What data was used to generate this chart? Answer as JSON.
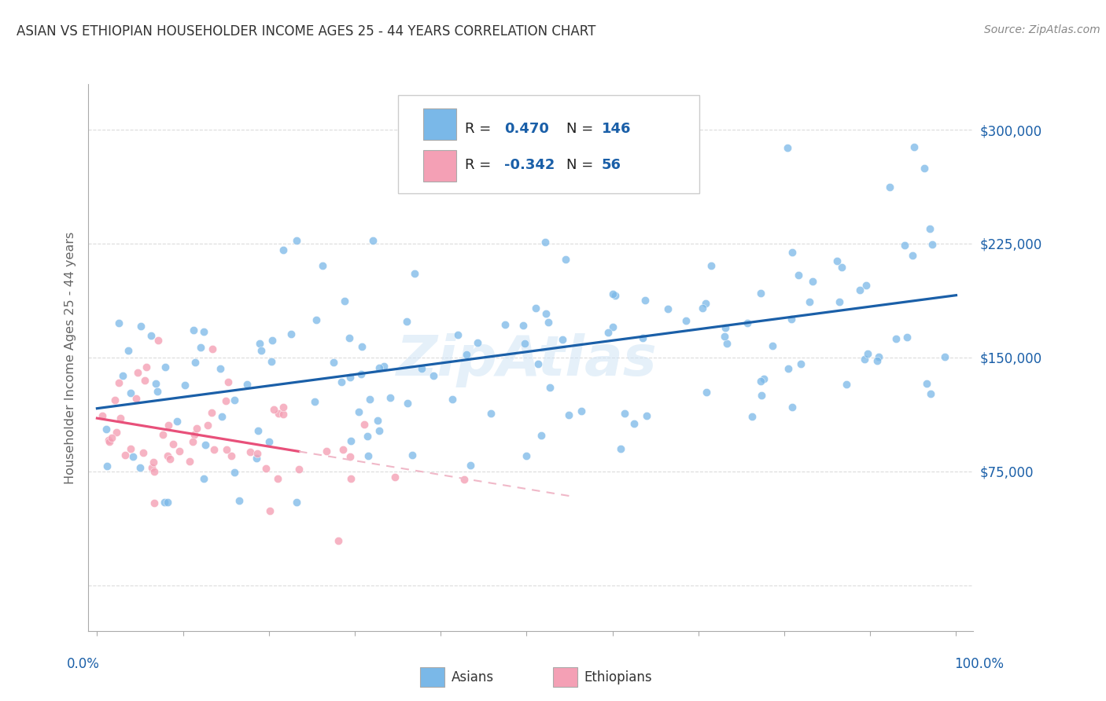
{
  "title": "ASIAN VS ETHIOPIAN HOUSEHOLDER INCOME AGES 25 - 44 YEARS CORRELATION CHART",
  "source": "Source: ZipAtlas.com",
  "ylabel": "Householder Income Ages 25 - 44 years",
  "asian_R": 0.47,
  "asian_N": 146,
  "ethiopian_R": -0.342,
  "ethiopian_N": 56,
  "asian_color": "#7ab8e8",
  "asian_line_color": "#1a5fa8",
  "ethiopian_color": "#f4a0b5",
  "ethiopian_line_color": "#e8507a",
  "ethiopian_dash_color": "#f0b8c8",
  "background_color": "#ffffff",
  "grid_color": "#cccccc",
  "title_color": "#333333",
  "axis_label_color": "#666666",
  "legend_value_color": "#1a5fa8",
  "watermark_color": "#d0e4f5",
  "yticks": [
    0,
    75000,
    150000,
    225000,
    300000
  ],
  "ytick_labels": [
    "",
    "$75,000",
    "$150,000",
    "$225,000",
    "$300,000"
  ],
  "ymin": -30000,
  "ymax": 330000,
  "xmin": -1,
  "xmax": 102
}
